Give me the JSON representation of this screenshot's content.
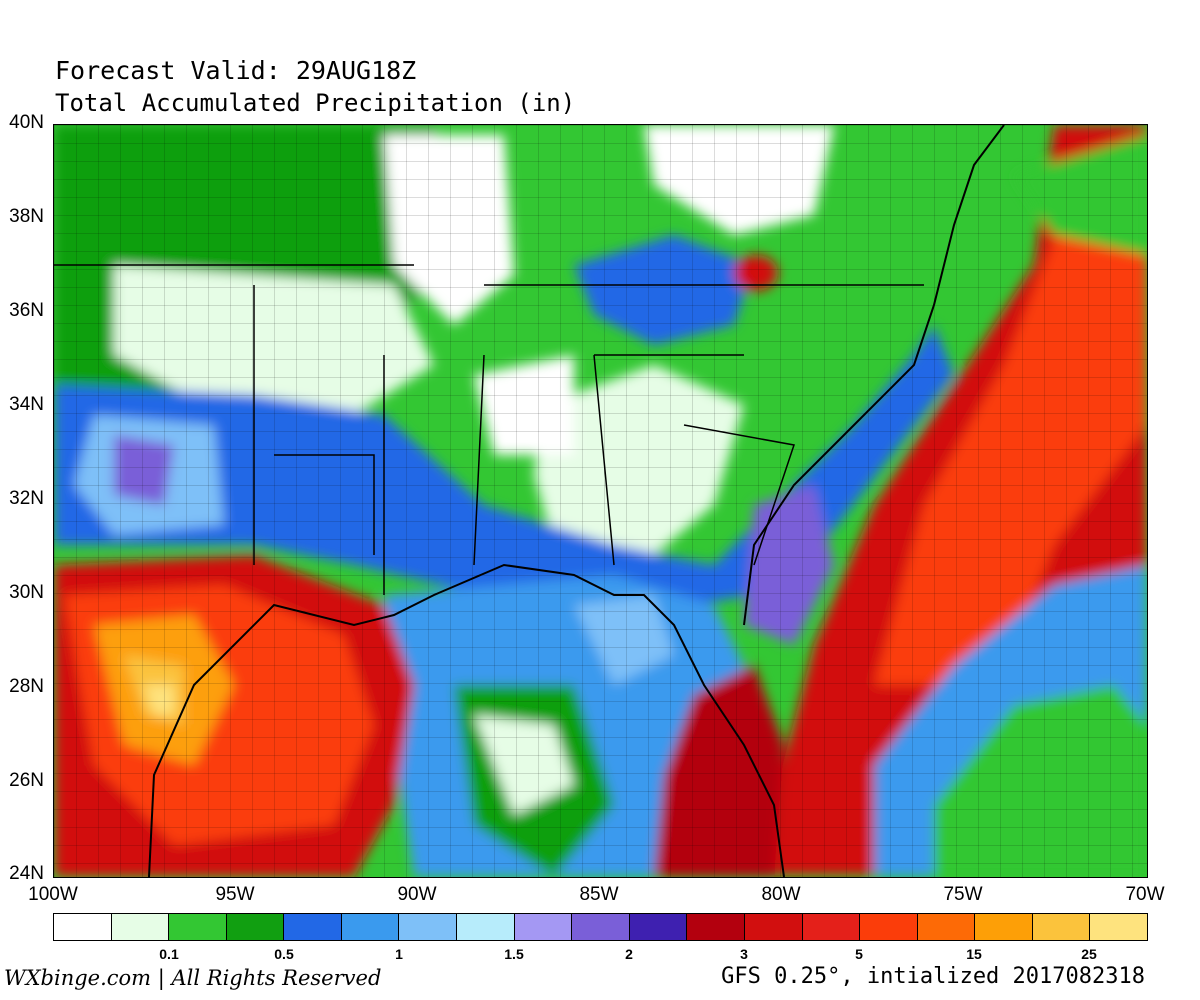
{
  "header": {
    "title": "Forecast Valid: 29AUG18Z",
    "subtitle": "Total Accumulated Precipitation (in)"
  },
  "axes": {
    "lat_ticks": [
      "40N",
      "38N",
      "36N",
      "34N",
      "32N",
      "30N",
      "28N",
      "26N",
      "24N"
    ],
    "lon_ticks": [
      "100W",
      "95W",
      "90W",
      "85W",
      "80W",
      "75W",
      "70W"
    ],
    "lat_range": [
      24,
      40
    ],
    "lon_range": [
      -100,
      -70
    ]
  },
  "colorbar": {
    "colors": [
      "#ffffff",
      "#e6fde6",
      "#33c733",
      "#119f11",
      "#2268e6",
      "#3a9aee",
      "#7ec0f8",
      "#b7ecfb",
      "#a498f3",
      "#7a5fd8",
      "#3e20b0",
      "#b3000e",
      "#d20f0f",
      "#e4201a",
      "#fb3d0a",
      "#fd6a06",
      "#fd9f07",
      "#fbc33c",
      "#fee37e"
    ],
    "labels": [
      {
        "text": "0.1",
        "index": 2
      },
      {
        "text": "0.5",
        "index": 4
      },
      {
        "text": "1",
        "index": 6
      },
      {
        "text": "1.5",
        "index": 8
      },
      {
        "text": "2",
        "index": 10
      },
      {
        "text": "3",
        "index": 12
      },
      {
        "text": "5",
        "index": 14
      },
      {
        "text": "15",
        "index": 16
      },
      {
        "text": "25",
        "index": 18
      }
    ]
  },
  "footer": {
    "credit": "WXbinge.com | All Rights Reserved",
    "model": "GFS 0.25°, intialized 2017082318"
  }
}
